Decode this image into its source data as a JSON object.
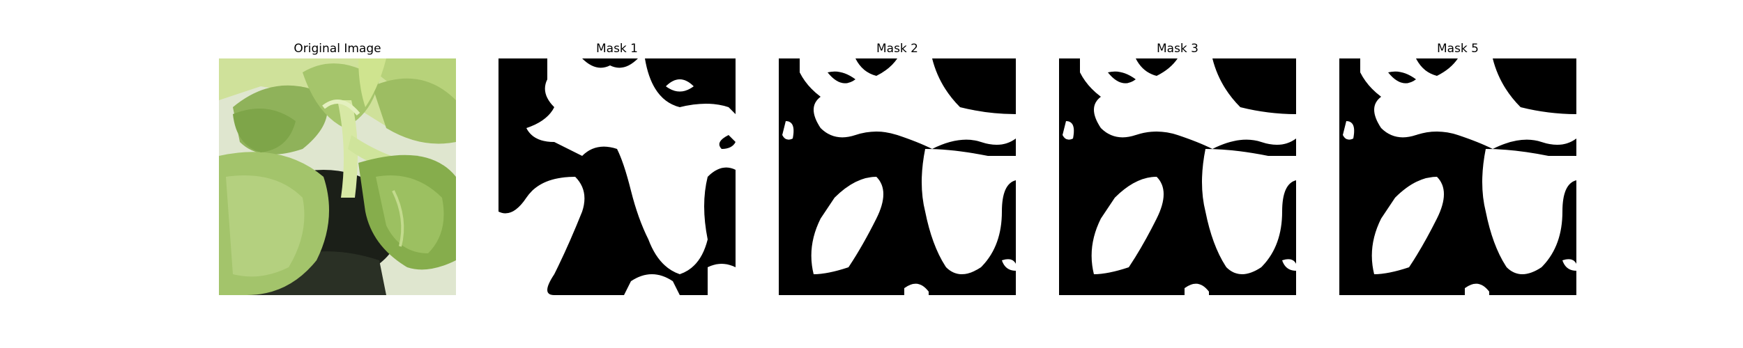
{
  "figure": {
    "background": "#ffffff",
    "panels": [
      {
        "title": "Original Image",
        "kind": "photo",
        "description": "Close-up of green leafy plant (bok choy) in a dark pot"
      },
      {
        "title": "Mask 1",
        "kind": "mask"
      },
      {
        "title": "Mask 2",
        "kind": "mask"
      },
      {
        "title": "Mask 3",
        "kind": "mask"
      },
      {
        "title": "Mask 5",
        "kind": "mask"
      }
    ],
    "colors": {
      "mask_foreground": "#ffffff",
      "mask_background": "#000000",
      "leaf_light": "#c6dc8a",
      "leaf_mid": "#9fc060",
      "leaf_dark": "#6f9a3a",
      "pot": "#1b1f18"
    }
  }
}
